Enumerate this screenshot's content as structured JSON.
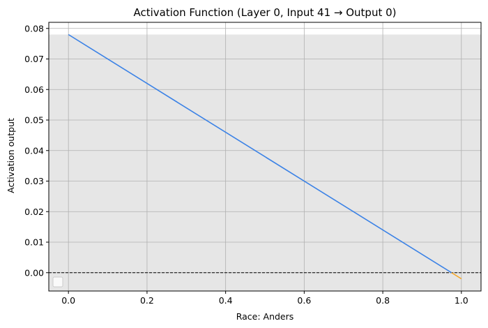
{
  "chart_data": {
    "type": "line",
    "title": "Activation Function (Layer 0, Input 41 → Output 0)",
    "xlabel": "Race: Anders",
    "ylabel": "Activation output",
    "xlim": [
      -0.05,
      1.05
    ],
    "ylim": [
      -0.006,
      0.082
    ],
    "x_ticks": [
      0.0,
      0.2,
      0.4,
      0.6,
      0.8,
      1.0
    ],
    "x_tick_labels": [
      "0.0",
      "0.2",
      "0.4",
      "0.6",
      "0.8",
      "1.0"
    ],
    "y_ticks": [
      0.0,
      0.01,
      0.02,
      0.03,
      0.04,
      0.05,
      0.06,
      0.07,
      0.08
    ],
    "y_tick_labels": [
      "0.00",
      "0.01",
      "0.02",
      "0.03",
      "0.04",
      "0.05",
      "0.06",
      "0.07",
      "0.08"
    ],
    "grid": true,
    "legend": "lower-left (empty)",
    "shaded_band": {
      "y_from": -0.006,
      "y_to": 0.078,
      "color": "#e6e6e6"
    },
    "reference_line": {
      "y": 0.0,
      "style": "dashed",
      "color": "#000000"
    },
    "series": [
      {
        "x": [
          0.0,
          0.975
        ],
        "y": [
          0.078,
          0.0
        ],
        "color": "#3b82e6"
      },
      {
        "x": [
          0.975,
          1.0
        ],
        "y": [
          0.0,
          -0.002
        ],
        "color": "#f5a623"
      }
    ]
  }
}
